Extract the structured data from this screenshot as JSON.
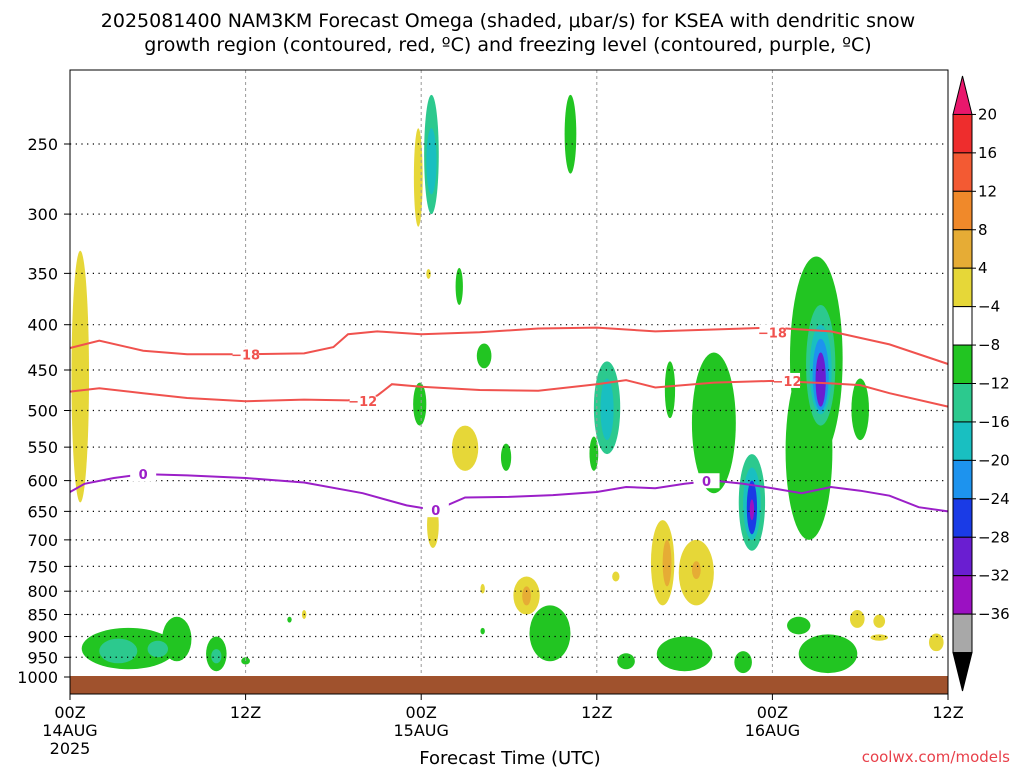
{
  "title": {
    "line1": "2025081400 NAM3KM Forecast Omega (shaded, μbar/s) for KSEA with dendritic snow",
    "line2": "growth region (contoured, red, ºC) and freezing level (contoured, purple, ºC)"
  },
  "credit": "coolwx.com/models",
  "colors": {
    "dendritic_contour": "#f0524e",
    "freezing_contour": "#9b1fc8",
    "ground": "#a0522d"
  },
  "chart_data": {
    "type": "heatmap",
    "title": "2025081400 NAM3KM Forecast Omega (shaded, μbar/s) for KSEA with dendritic snow growth region (contoured, red, ºC) and freezing level (contoured, purple, ºC)",
    "xlabel": "Forecast Time (UTC)",
    "ylabel": "",
    "x_unit": "forecast hour from 2025-08-14 00Z",
    "xlim": [
      0,
      60
    ],
    "ylim": [
      1025,
      200
    ],
    "y_scale": "log-pressure (hPa)",
    "grid": true,
    "x_ticks": [
      {
        "hour": 0,
        "lines": [
          "00Z",
          "14AUG",
          "2025"
        ]
      },
      {
        "hour": 12,
        "lines": [
          "12Z"
        ]
      },
      {
        "hour": 24,
        "lines": [
          "00Z",
          "15AUG"
        ]
      },
      {
        "hour": 36,
        "lines": [
          "12Z"
        ]
      },
      {
        "hour": 48,
        "lines": [
          "00Z",
          "16AUG"
        ]
      },
      {
        "hour": 60,
        "lines": [
          "12Z"
        ]
      }
    ],
    "y_ticks": [
      250,
      300,
      350,
      400,
      450,
      500,
      550,
      600,
      650,
      700,
      750,
      800,
      850,
      900,
      950,
      1000
    ],
    "colorbar": {
      "label_values": [
        "20",
        "16",
        "12",
        "8",
        "4",
        "−4",
        "−8",
        "−12",
        "−16",
        "−20",
        "−24",
        "−28",
        "−32",
        "−36"
      ],
      "bins": [
        {
          "color": "#e9176c"
        },
        {
          "color": "#ee2d2d"
        },
        {
          "color": "#f35a33"
        },
        {
          "color": "#f0892a"
        },
        {
          "color": "#e6ac35"
        },
        {
          "color": "#e6d738"
        },
        {
          "color": "#ffffff"
        },
        {
          "color": "#22c522"
        },
        {
          "color": "#2cc98e"
        },
        {
          "color": "#19bfc1"
        },
        {
          "color": "#1d93ee"
        },
        {
          "color": "#1a3be6"
        },
        {
          "color": "#6a1ed1"
        },
        {
          "color": "#9b11c2"
        },
        {
          "color": "#a8a8a8"
        },
        {
          "color": "#000000"
        }
      ]
    },
    "contours": [
      {
        "name": "-18",
        "labels": [
          {
            "hour": 12.0,
            "p": 432,
            "text": "−18"
          },
          {
            "hour": 48.0,
            "p": 408,
            "text": "−18"
          }
        ],
        "points": [
          [
            0,
            425
          ],
          [
            2,
            417
          ],
          [
            5,
            428
          ],
          [
            8,
            432
          ],
          [
            12,
            432
          ],
          [
            16,
            431
          ],
          [
            18,
            424
          ],
          [
            19,
            410
          ],
          [
            21,
            407
          ],
          [
            24,
            410
          ],
          [
            28,
            408
          ],
          [
            32,
            404
          ],
          [
            36,
            403
          ],
          [
            40,
            407
          ],
          [
            44,
            405
          ],
          [
            48,
            403
          ],
          [
            52,
            407
          ],
          [
            56,
            421
          ],
          [
            60,
            443
          ]
        ]
      },
      {
        "name": "-12",
        "labels": [
          {
            "hour": 20.0,
            "p": 488,
            "text": "−12"
          },
          {
            "hour": 49.0,
            "p": 463,
            "text": "−12"
          }
        ],
        "points": [
          [
            0,
            476
          ],
          [
            2,
            472
          ],
          [
            5,
            478
          ],
          [
            8,
            484
          ],
          [
            12,
            488
          ],
          [
            16,
            486
          ],
          [
            19,
            487
          ],
          [
            21,
            481
          ],
          [
            22,
            467
          ],
          [
            24,
            470
          ],
          [
            28,
            474
          ],
          [
            32,
            475
          ],
          [
            36,
            467
          ],
          [
            38,
            462
          ],
          [
            40,
            471
          ],
          [
            44,
            465
          ],
          [
            48,
            463
          ],
          [
            52,
            466
          ],
          [
            54,
            468
          ],
          [
            56,
            478
          ],
          [
            60,
            495
          ]
        ]
      },
      {
        "name": "0",
        "labels": [
          {
            "hour": 5.0,
            "p": 590,
            "text": "0"
          },
          {
            "hour": 25.0,
            "p": 648,
            "text": "0"
          },
          {
            "hour": 43.5,
            "p": 601,
            "text": "0"
          }
        ],
        "points": [
          [
            0,
            618
          ],
          [
            1,
            605
          ],
          [
            3,
            596
          ],
          [
            5,
            590
          ],
          [
            8,
            592
          ],
          [
            12,
            596
          ],
          [
            16,
            603
          ],
          [
            20,
            620
          ],
          [
            23,
            640
          ],
          [
            25,
            648
          ],
          [
            27,
            627
          ],
          [
            30,
            626
          ],
          [
            33,
            623
          ],
          [
            36,
            618
          ],
          [
            38,
            610
          ],
          [
            40,
            612
          ],
          [
            42,
            605
          ],
          [
            44,
            600
          ],
          [
            46,
            605
          ],
          [
            48,
            612
          ],
          [
            50,
            620
          ],
          [
            52,
            610
          ],
          [
            54,
            616
          ],
          [
            56,
            624
          ],
          [
            58,
            643
          ],
          [
            60,
            650
          ]
        ]
      }
    ],
    "shaded_cells": [
      {
        "hour": 0.7,
        "p_top": 330,
        "p_bot": 635,
        "hw": 0.6,
        "value": 6
      },
      {
        "hour": 24.7,
        "p_top": 220,
        "p_bot": 300,
        "hw": 0.5,
        "value": -9
      },
      {
        "hour": 24.7,
        "p_top": 240,
        "p_bot": 285,
        "hw": 0.35,
        "value": -14
      },
      {
        "hour": 23.8,
        "p_top": 240,
        "p_bot": 310,
        "hw": 0.3,
        "value": 6
      },
      {
        "hour": 34.2,
        "p_top": 220,
        "p_bot": 270,
        "hw": 0.4,
        "value": -6
      },
      {
        "hour": 24.5,
        "p_top": 346,
        "p_bot": 355,
        "hw": 0.15,
        "value": 6
      },
      {
        "hour": 26.6,
        "p_top": 345,
        "p_bot": 380,
        "hw": 0.25,
        "value": -6
      },
      {
        "hour": 28.3,
        "p_top": 420,
        "p_bot": 448,
        "hw": 0.5,
        "value": -6
      },
      {
        "hour": 23.9,
        "p_top": 465,
        "p_bot": 520,
        "hw": 0.45,
        "value": -6
      },
      {
        "hour": 27.0,
        "p_top": 520,
        "p_bot": 585,
        "hw": 0.9,
        "value": 6
      },
      {
        "hour": 29.8,
        "p_top": 545,
        "p_bot": 585,
        "hw": 0.35,
        "value": -6
      },
      {
        "hour": 24.8,
        "p_top": 635,
        "p_bot": 715,
        "hw": 0.4,
        "value": 6
      },
      {
        "hour": 36.7,
        "p_top": 440,
        "p_bot": 560,
        "hw": 0.9,
        "value": -9
      },
      {
        "hour": 36.7,
        "p_top": 460,
        "p_bot": 540,
        "hw": 0.45,
        "value": -13
      },
      {
        "hour": 35.8,
        "p_top": 535,
        "p_bot": 585,
        "hw": 0.3,
        "value": -6
      },
      {
        "hour": 41.0,
        "p_top": 440,
        "p_bot": 510,
        "hw": 0.35,
        "value": -6
      },
      {
        "hour": 44.0,
        "p_top": 430,
        "p_bot": 620,
        "hw": 1.5,
        "value": -6
      },
      {
        "hour": 46.6,
        "p_top": 560,
        "p_bot": 720,
        "hw": 0.9,
        "value": -9
      },
      {
        "hour": 46.6,
        "p_top": 580,
        "p_bot": 700,
        "hw": 0.6,
        "value": -14
      },
      {
        "hour": 46.6,
        "p_top": 600,
        "p_bot": 690,
        "hw": 0.35,
        "value": -22
      },
      {
        "hour": 46.6,
        "p_top": 630,
        "p_bot": 665,
        "hw": 0.15,
        "value": -30
      },
      {
        "hour": 51.0,
        "p_top": 335,
        "p_bot": 570,
        "hw": 1.8,
        "value": -6
      },
      {
        "hour": 50.5,
        "p_top": 440,
        "p_bot": 700,
        "hw": 1.6,
        "value": -6
      },
      {
        "hour": 51.3,
        "p_top": 380,
        "p_bot": 520,
        "hw": 1.0,
        "value": -10
      },
      {
        "hour": 51.3,
        "p_top": 400,
        "p_bot": 505,
        "hw": 0.75,
        "value": -14
      },
      {
        "hour": 51.3,
        "p_top": 415,
        "p_bot": 500,
        "hw": 0.55,
        "value": -18
      },
      {
        "hour": 51.3,
        "p_top": 430,
        "p_bot": 495,
        "hw": 0.35,
        "value": -26
      },
      {
        "hour": 54.0,
        "p_top": 460,
        "p_bot": 540,
        "hw": 0.6,
        "value": -6
      },
      {
        "hour": 40.5,
        "p_top": 665,
        "p_bot": 830,
        "hw": 0.8,
        "value": 6
      },
      {
        "hour": 40.8,
        "p_top": 700,
        "p_bot": 790,
        "hw": 0.3,
        "value": 10
      },
      {
        "hour": 42.8,
        "p_top": 700,
        "p_bot": 830,
        "hw": 1.2,
        "value": 6
      },
      {
        "hour": 42.8,
        "p_top": 740,
        "p_bot": 775,
        "hw": 0.3,
        "value": 10
      },
      {
        "hour": 31.2,
        "p_top": 770,
        "p_bot": 850,
        "hw": 0.9,
        "value": 6
      },
      {
        "hour": 31.2,
        "p_top": 790,
        "p_bot": 830,
        "hw": 0.3,
        "value": 10
      },
      {
        "hour": 37.3,
        "p_top": 760,
        "p_bot": 780,
        "hw": 0.25,
        "value": 6
      },
      {
        "hour": 28.2,
        "p_top": 785,
        "p_bot": 805,
        "hw": 0.15,
        "value": 6
      },
      {
        "hour": 32.8,
        "p_top": 830,
        "p_bot": 960,
        "hw": 1.4,
        "value": -6
      },
      {
        "hour": 28.2,
        "p_top": 880,
        "p_bot": 895,
        "hw": 0.15,
        "value": -6
      },
      {
        "hour": 16.0,
        "p_top": 840,
        "p_bot": 860,
        "hw": 0.15,
        "value": 6
      },
      {
        "hour": 15.0,
        "p_top": 855,
        "p_bot": 868,
        "hw": 0.15,
        "value": -6
      },
      {
        "hour": 4.0,
        "p_top": 880,
        "p_bot": 980,
        "hw": 3.2,
        "value": -6
      },
      {
        "hour": 7.3,
        "p_top": 855,
        "p_bot": 960,
        "hw": 1.0,
        "value": -6
      },
      {
        "hour": 3.3,
        "p_top": 905,
        "p_bot": 965,
        "hw": 1.3,
        "value": -10
      },
      {
        "hour": 6.0,
        "p_top": 910,
        "p_bot": 950,
        "hw": 0.7,
        "value": -10
      },
      {
        "hour": 10.0,
        "p_top": 900,
        "p_bot": 985,
        "hw": 0.7,
        "value": -6
      },
      {
        "hour": 10.0,
        "p_top": 930,
        "p_bot": 965,
        "hw": 0.35,
        "value": -10
      },
      {
        "hour": 12.0,
        "p_top": 950,
        "p_bot": 968,
        "hw": 0.3,
        "value": -6
      },
      {
        "hour": 38.0,
        "p_top": 940,
        "p_bot": 980,
        "hw": 0.6,
        "value": -6
      },
      {
        "hour": 42.0,
        "p_top": 900,
        "p_bot": 985,
        "hw": 1.9,
        "value": -6
      },
      {
        "hour": 46.0,
        "p_top": 935,
        "p_bot": 990,
        "hw": 0.6,
        "value": -6
      },
      {
        "hour": 49.8,
        "p_top": 855,
        "p_bot": 895,
        "hw": 0.8,
        "value": -6
      },
      {
        "hour": 51.8,
        "p_top": 895,
        "p_bot": 990,
        "hw": 2.0,
        "value": -6
      },
      {
        "hour": 53.8,
        "p_top": 840,
        "p_bot": 880,
        "hw": 0.5,
        "value": 6
      },
      {
        "hour": 55.3,
        "p_top": 850,
        "p_bot": 880,
        "hw": 0.4,
        "value": 6
      },
      {
        "hour": 55.3,
        "p_top": 895,
        "p_bot": 910,
        "hw": 0.6,
        "value": 6
      },
      {
        "hour": 59.2,
        "p_top": 893,
        "p_bot": 935,
        "hw": 0.5,
        "value": 6
      }
    ]
  }
}
